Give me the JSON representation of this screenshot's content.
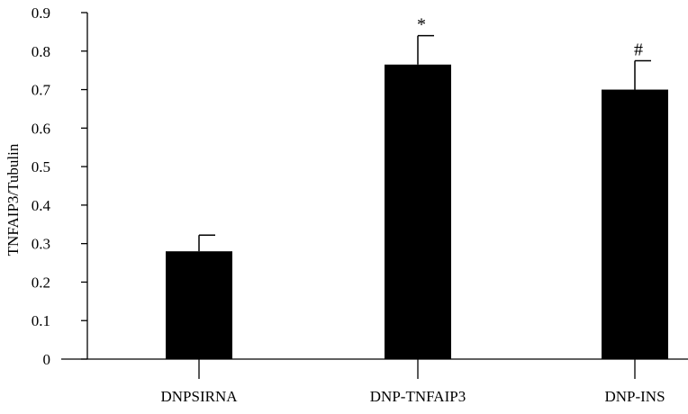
{
  "chart_data": {
    "type": "bar",
    "categories": [
      "DNPSIRNA",
      "DNP-TNFAIP3",
      "DNP-INS"
    ],
    "values": [
      0.28,
      0.765,
      0.7
    ],
    "error": [
      0.042,
      0.075,
      0.075
    ],
    "annotations": [
      "",
      "*",
      "#"
    ],
    "ylabel": "TNFAIP3/Tubulin",
    "xlabel": "",
    "ylim": [
      0,
      0.9
    ],
    "yticks": [
      0,
      0.1,
      0.2,
      0.3,
      0.4,
      0.5,
      0.6,
      0.7,
      0.8,
      0.9
    ],
    "ytick_labels": [
      "0",
      "0.1",
      "0.2",
      "0.3",
      "0.4",
      "0.5",
      "0.6",
      "0.7",
      "0.8",
      "0.9"
    ],
    "bar_color": "#000000",
    "grid": false,
    "legend": "none"
  }
}
